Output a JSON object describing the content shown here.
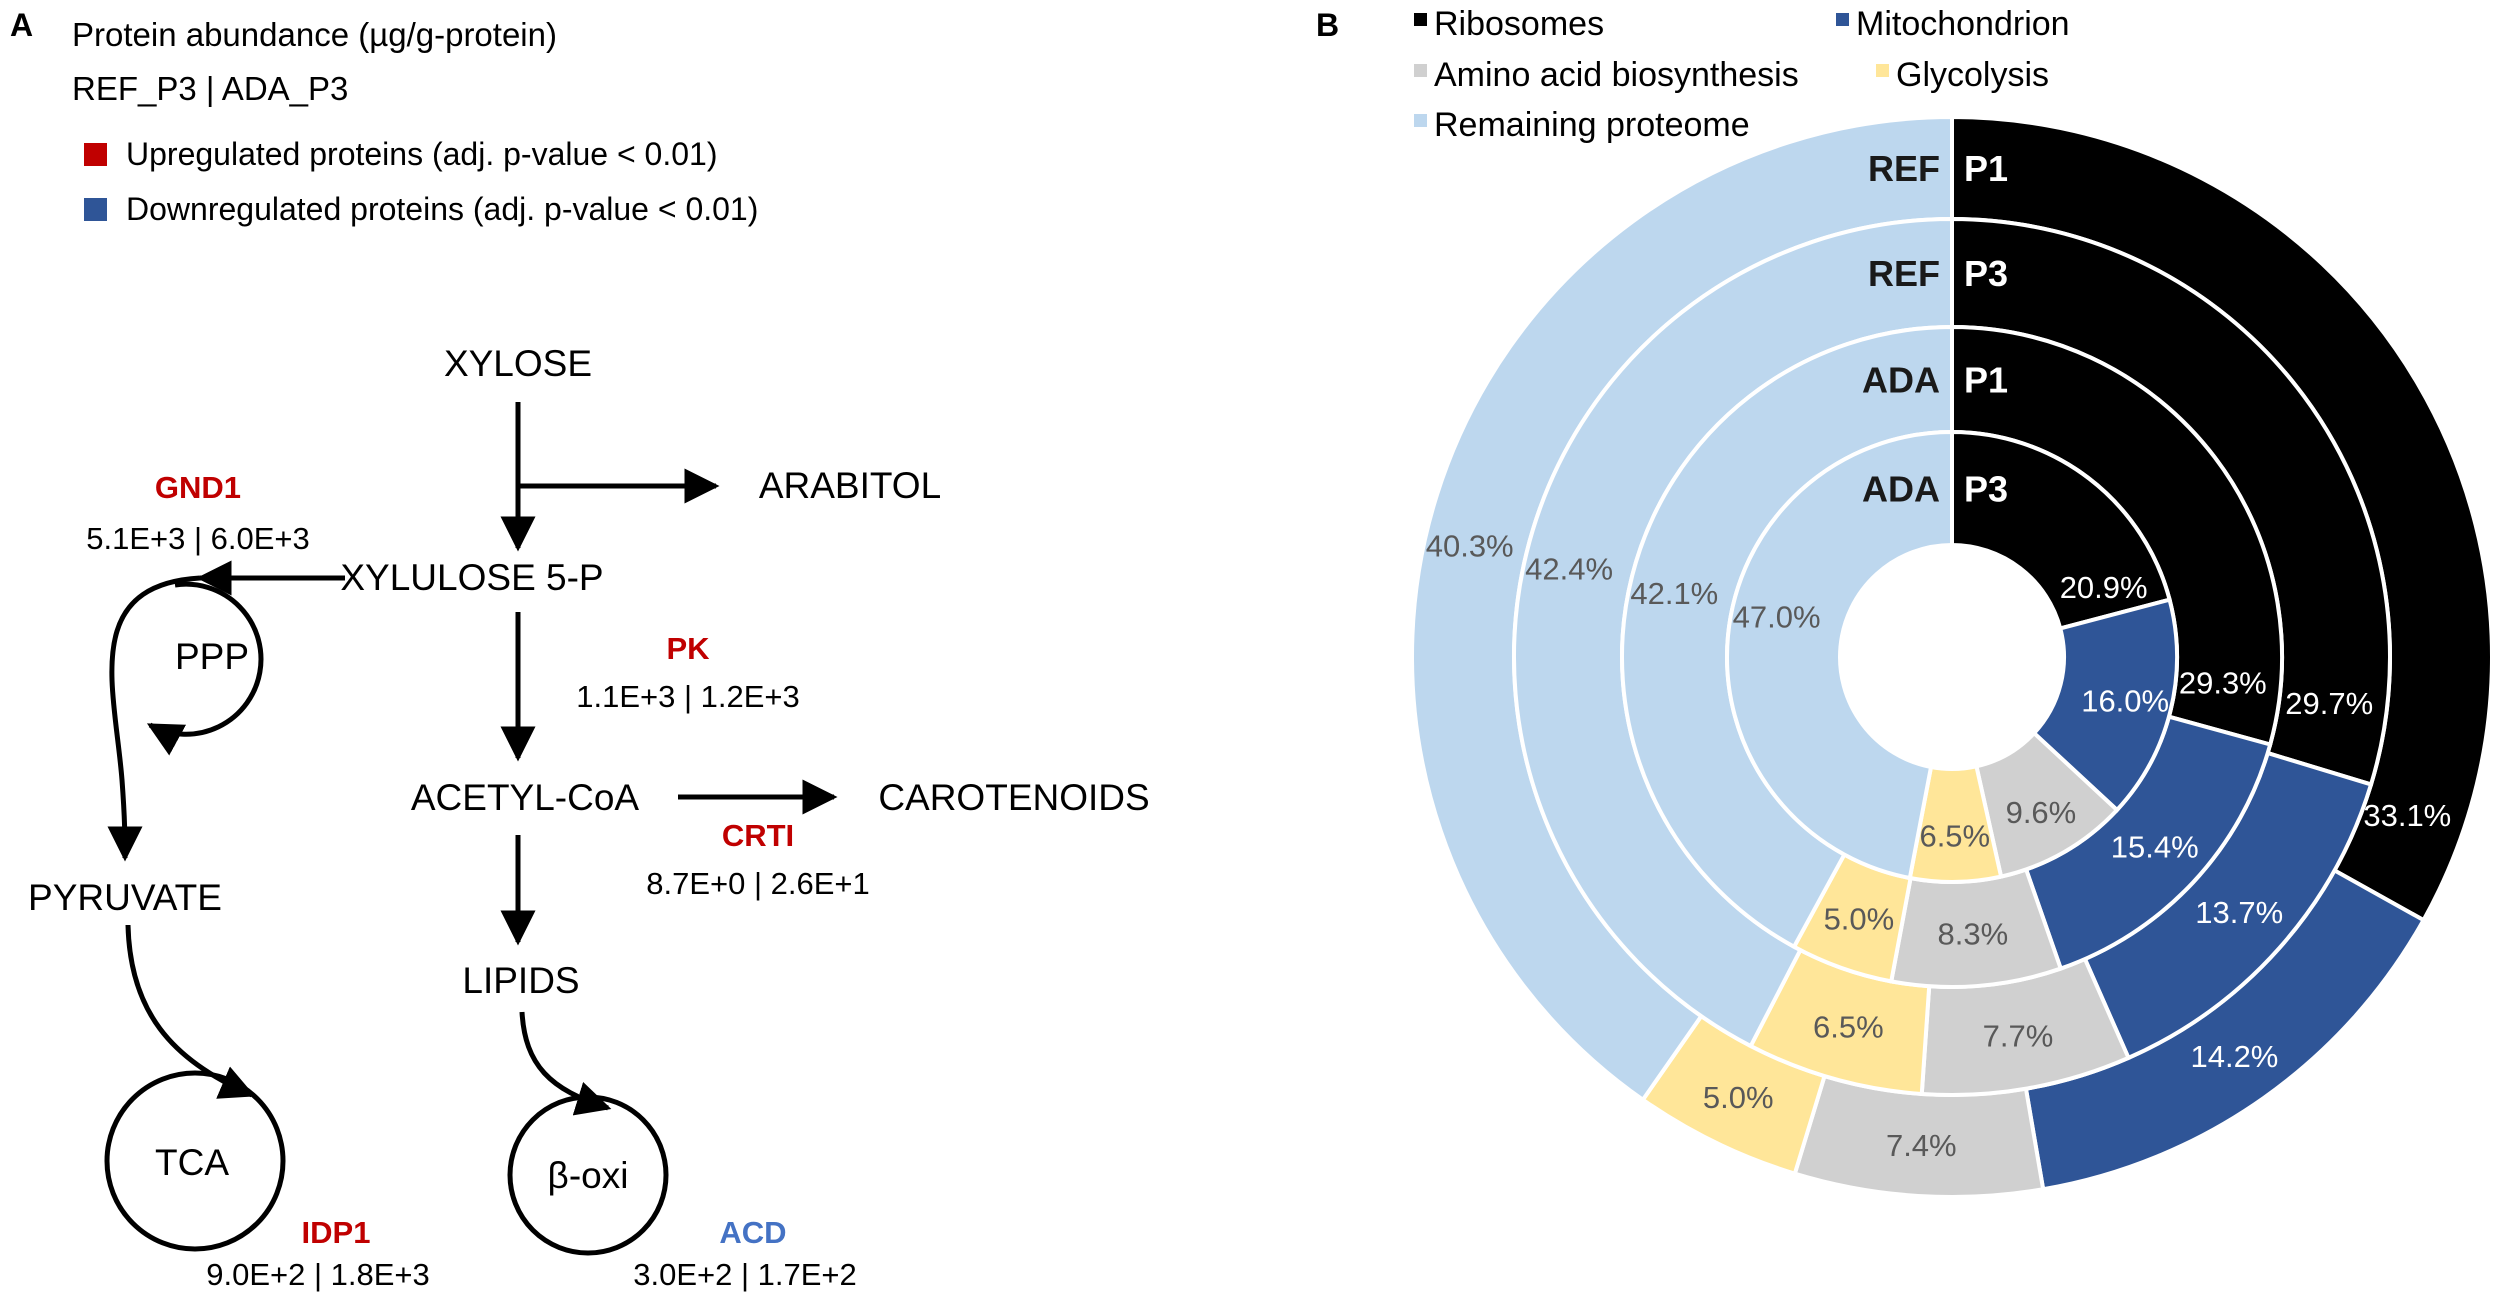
{
  "panel_a": {
    "label": "A",
    "header": {
      "title": "Protein abundance (µg/g-protein)",
      "conditions": "REF_P3 | ADA_P3",
      "legend": [
        {
          "label": "Upregulated proteins (adj. p-value < 0.01)",
          "color": "#c00000"
        },
        {
          "label": "Downregulated proteins (adj. p-value < 0.01)",
          "color": "#2f5597"
        }
      ]
    },
    "metabolites": {
      "xylose": "XYLOSE",
      "arabitol": "ARABITOL",
      "xylulose": "XYLULOSE 5-P",
      "ppp": "PPP",
      "acetyl_coa": "ACETYL-CoA",
      "carotenoids": "CAROTENOIDS",
      "pyruvate": "PYRUVATE",
      "lipids": "LIPIDS",
      "tca": "TCA",
      "beta_oxi": "β-oxi"
    },
    "enzymes": {
      "gnd1": {
        "name": "GND1",
        "values": "5.1E+3 | 6.0E+3",
        "color": "#c00000"
      },
      "pk": {
        "name": "PK",
        "values": "1.1E+3 | 1.2E+3",
        "color": "#c00000"
      },
      "crti": {
        "name": "CRTI",
        "values": "8.7E+0 | 2.6E+1",
        "color": "#c00000"
      },
      "idp1": {
        "name": "IDP1",
        "values": "9.0E+2 | 1.8E+3",
        "color": "#c00000"
      },
      "acd": {
        "name": "ACD",
        "values": "3.0E+2 | 1.7E+2",
        "color": "#4472c4"
      }
    }
  },
  "panel_b": {
    "label": "B",
    "legend": [
      {
        "label": "Ribosomes",
        "color": "#000000"
      },
      {
        "label": "Mitochondrion",
        "color": "#2f5597"
      },
      {
        "label": "Amino acid biosynthesis",
        "color": "#d0d0d0"
      },
      {
        "label": "Glycolysis",
        "color": "#ffe699"
      },
      {
        "label": "Remaining proteome",
        "color": "#bdd7ee"
      }
    ]
  },
  "chart_data": {
    "type": "pie",
    "subtype": "multi-ring donut",
    "categories": [
      "Ribosomes",
      "Mitochondrion",
      "Amino acid biosynthesis",
      "Glycolysis",
      "Remaining proteome"
    ],
    "colors": [
      "#000000",
      "#2f5597",
      "#d0d0d0",
      "#ffe699",
      "#bdd7ee"
    ],
    "rings": [
      {
        "strain": "REF",
        "phase": "P1",
        "values": [
          33.1,
          14.2,
          7.4,
          5.0,
          40.3
        ]
      },
      {
        "strain": "REF",
        "phase": "P3",
        "values": [
          29.7,
          13.7,
          7.7,
          6.5,
          42.4
        ]
      },
      {
        "strain": "ADA",
        "phase": "P1",
        "values": [
          29.3,
          15.4,
          8.3,
          5.0,
          42.1
        ]
      },
      {
        "strain": "ADA",
        "phase": "P3",
        "values": [
          20.9,
          16.0,
          9.6,
          6.5,
          47.0
        ]
      }
    ],
    "value_labels": [
      [
        "33.1%",
        "14.2%",
        "7.4%",
        "5.0%",
        "40.3%"
      ],
      [
        "29.7%",
        "13.7%",
        "7.7%",
        "6.5%",
        "42.4%"
      ],
      [
        "29.3%",
        "15.4%",
        "8.3%",
        "5.0%",
        "42.1%"
      ],
      [
        "20.9%",
        "16.0%",
        "9.6%",
        "6.5%",
        "47.0%"
      ]
    ],
    "unit": "%",
    "legend_position": "top"
  }
}
